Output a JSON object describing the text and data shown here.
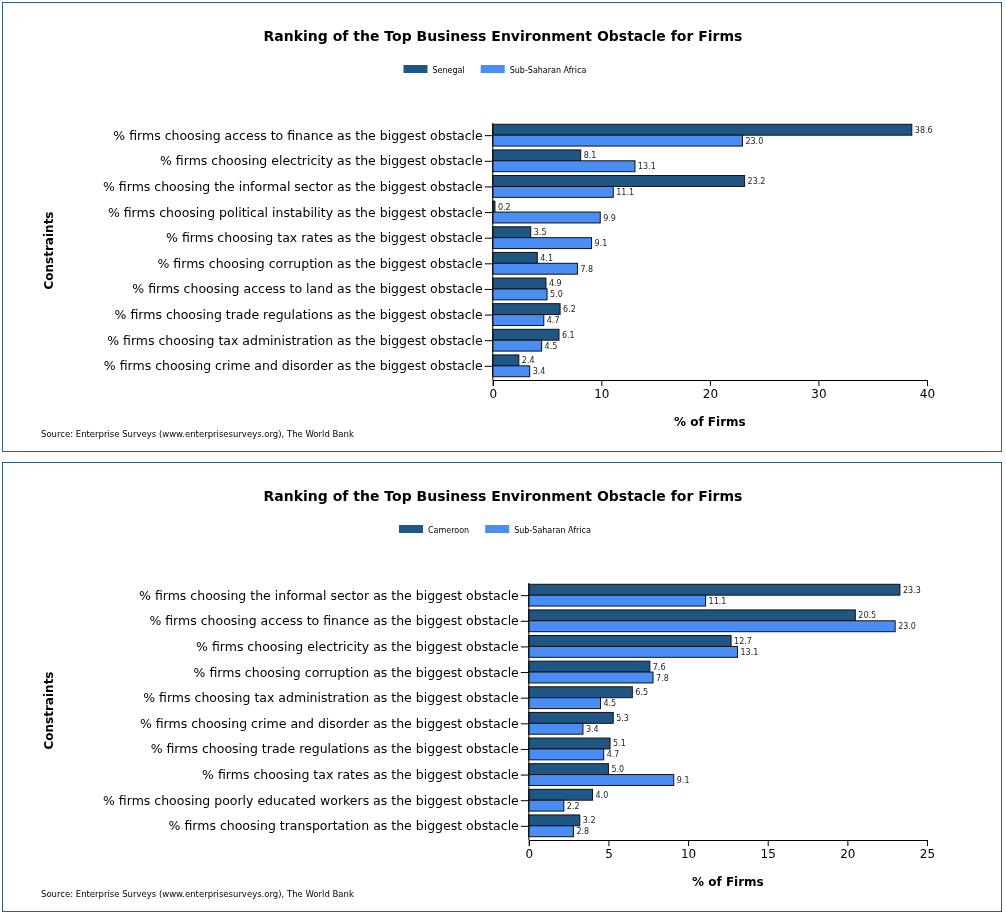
{
  "chart_data": [
    {
      "type": "bar",
      "orientation": "horizontal",
      "title": "Ranking of the Top Business Environment Obstacle for Firms",
      "xlabel": "% of Firms",
      "ylabel": "Constraints",
      "legend": "top",
      "categories": [
        "% firms choosing access to finance as the biggest obstacle",
        "% firms choosing electricity as the biggest obstacle",
        "% firms choosing the informal sector as the biggest obstacle",
        "% firms choosing political instability as the biggest obstacle",
        "% firms choosing tax rates as the biggest obstacle",
        "% firms choosing corruption as the biggest obstacle",
        "% firms choosing access to land as the biggest obstacle",
        "% firms choosing trade regulations as the biggest obstacle",
        "% firms choosing tax administration as the biggest obstacle",
        "% firms choosing crime and disorder as the biggest obstacle"
      ],
      "series": [
        {
          "name": "Senegal",
          "color": "#1f5683",
          "values": [
            38.6,
            8.1,
            23.2,
            0.2,
            3.5,
            4.1,
            4.9,
            6.2,
            6.1,
            2.4
          ],
          "value_labels": [
            "38.6",
            "8.1",
            "23.2",
            "0.2",
            "3.5",
            "4.1",
            "4.9",
            "6.2",
            "6.1",
            "2.4"
          ]
        },
        {
          "name": "Sub-Saharan Africa",
          "color": "#4a8ef5",
          "values": [
            23.0,
            13.1,
            11.1,
            9.9,
            9.1,
            7.8,
            5.0,
            4.7,
            4.5,
            3.4
          ],
          "value_labels": [
            "23.0",
            "13.1",
            "11.1",
            "9.9",
            "9.1",
            "7.8",
            "5.0",
            "4.7",
            "4.5",
            "3.4"
          ]
        }
      ],
      "xlim": [
        0,
        40
      ],
      "xticks": [
        0,
        10,
        20,
        30,
        40
      ],
      "annotations": [
        "Source: Enterprise Surveys (www.enterprisesurveys.org), The World Bank"
      ]
    },
    {
      "type": "bar",
      "orientation": "horizontal",
      "title": "Ranking of the Top Business Environment Obstacle for Firms",
      "xlabel": "% of Firms",
      "ylabel": "Constraints",
      "legend": "top",
      "categories": [
        "% firms choosing the informal sector as the biggest obstacle",
        "% firms choosing access to finance as the biggest obstacle",
        "% firms choosing electricity as the biggest obstacle",
        "% firms choosing corruption as the biggest obstacle",
        "% firms choosing tax administration as the biggest obstacle",
        "% firms choosing crime and disorder as the biggest obstacle",
        "% firms choosing trade regulations as the biggest obstacle",
        "% firms choosing tax rates as the biggest obstacle",
        "% firms choosing poorly educated workers as the biggest obstacle",
        "% firms choosing transportation as the biggest obstacle"
      ],
      "series": [
        {
          "name": "Cameroon",
          "color": "#1f5683",
          "values": [
            23.3,
            20.5,
            12.7,
            7.6,
            6.5,
            5.3,
            5.1,
            5.0,
            4.0,
            3.2
          ],
          "value_labels": [
            "23.3",
            "20.5",
            "12.7",
            "7.6",
            "6.5",
            "5.3",
            "5.1",
            "5.0",
            "4.0",
            "3.2"
          ]
        },
        {
          "name": "Sub-Saharan Africa",
          "color": "#4a8ef5",
          "values": [
            11.1,
            23.0,
            13.1,
            7.8,
            4.5,
            3.4,
            4.7,
            9.1,
            2.2,
            2.8
          ],
          "value_labels": [
            "11.1",
            "23.0",
            "13.1",
            "7.8",
            "4.5",
            "3.4",
            "4.7",
            "9.1",
            "2.2",
            "2.8"
          ]
        }
      ],
      "xlim": [
        0,
        25
      ],
      "xticks": [
        0,
        5,
        10,
        15,
        20,
        25
      ],
      "annotations": [
        "Source: Enterprise Surveys (www.enterprisesurveys.org), The World Bank"
      ]
    }
  ]
}
